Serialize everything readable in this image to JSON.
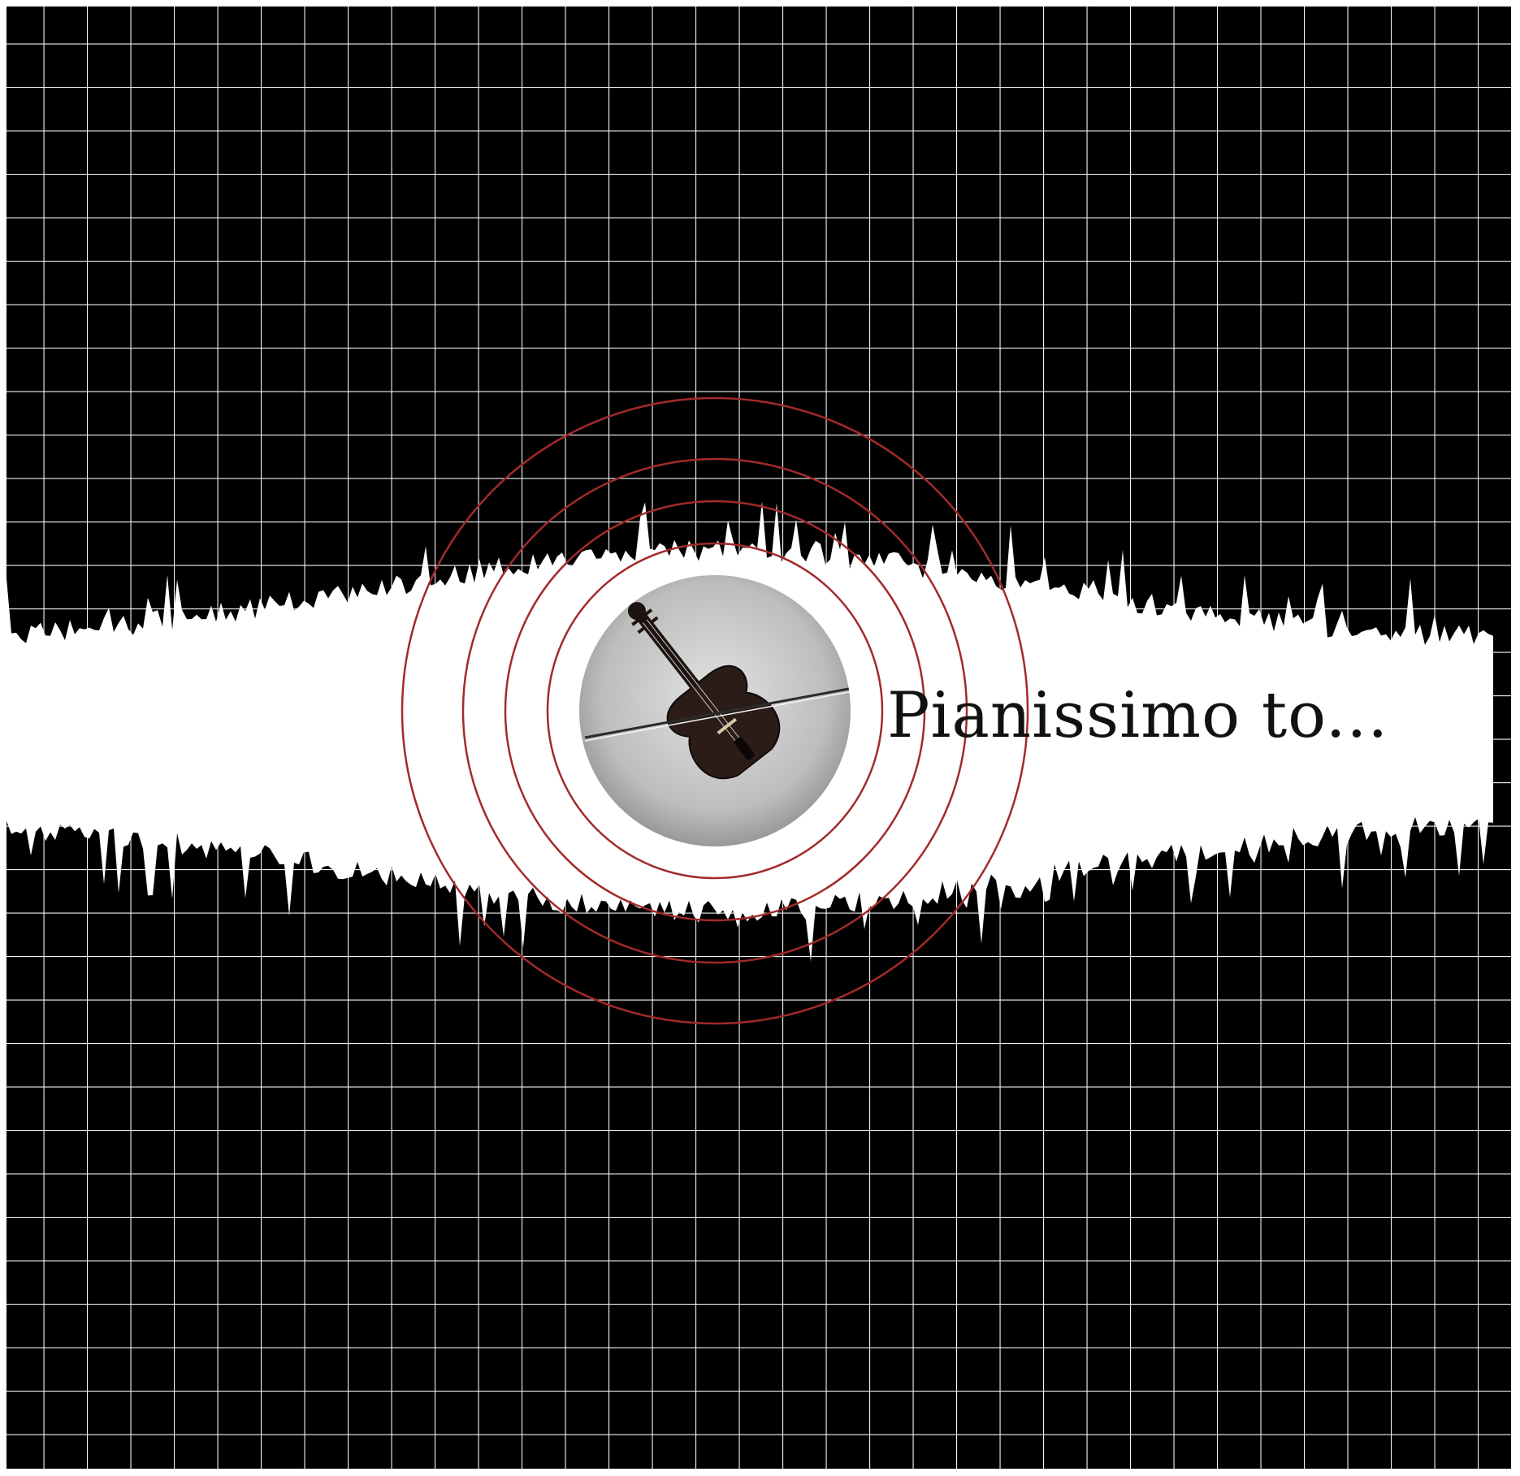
{
  "caption": {
    "text": "Pianissimo to..."
  },
  "colors": {
    "background": "#000000",
    "grid_lines": "#f2f2f2",
    "waveform": "#ffffff",
    "rings": "#a32a2a",
    "caption_text": "#111111",
    "photo_light": "#d8d8d8",
    "photo_dark": "#8a8a8a"
  },
  "icons": {
    "center_image": "violin-icon",
    "bow": "violin-bow-icon"
  }
}
